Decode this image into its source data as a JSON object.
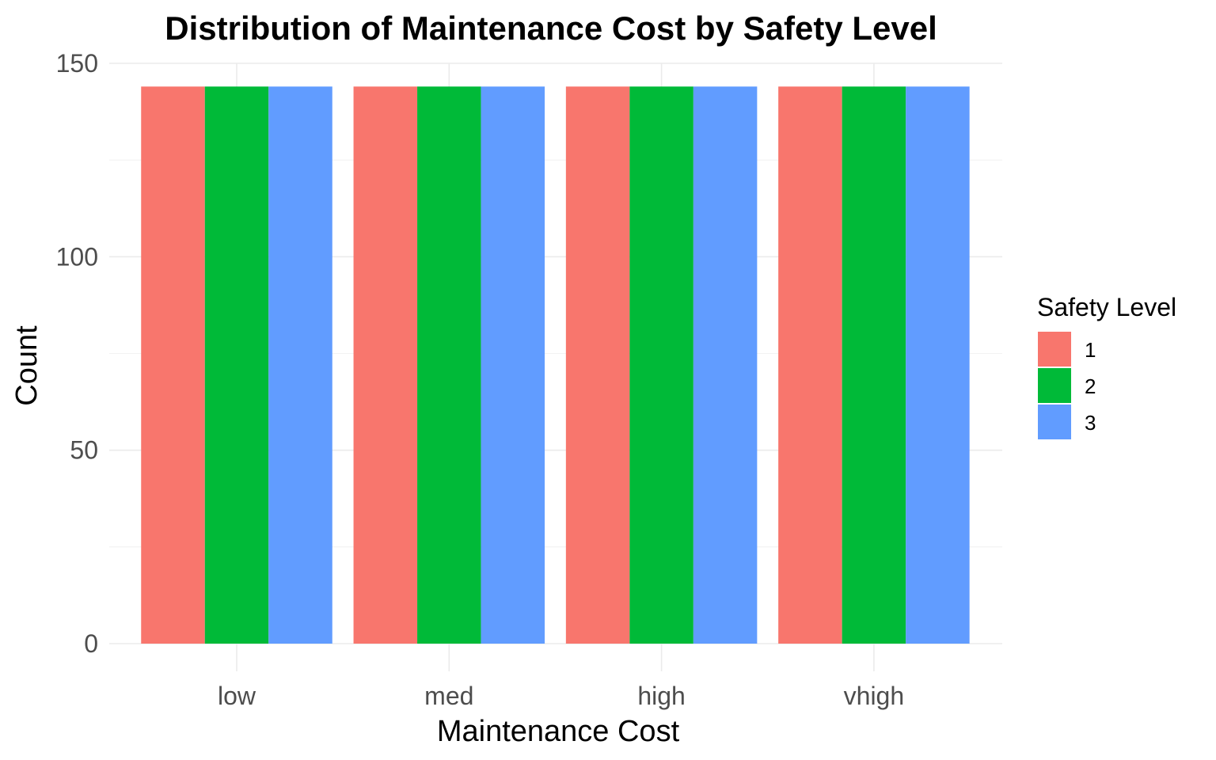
{
  "chart_data": {
    "type": "bar",
    "title": "Distribution of Maintenance Cost by Safety Level",
    "xlabel": "Maintenance Cost",
    "ylabel": "Count",
    "categories": [
      "low",
      "med",
      "high",
      "vhigh"
    ],
    "series": [
      {
        "name": "1",
        "values": [
          144,
          144,
          144,
          144
        ],
        "color": "#F8766D"
      },
      {
        "name": "2",
        "values": [
          144,
          144,
          144,
          144
        ],
        "color": "#00BA38"
      },
      {
        "name": "3",
        "values": [
          144,
          144,
          144,
          144
        ],
        "color": "#619CFF"
      }
    ],
    "ylim": [
      0,
      150
    ],
    "yticks": [
      0,
      50,
      100,
      150
    ],
    "legend": {
      "title": "Safety Level",
      "placement": "right"
    },
    "grid": true
  }
}
